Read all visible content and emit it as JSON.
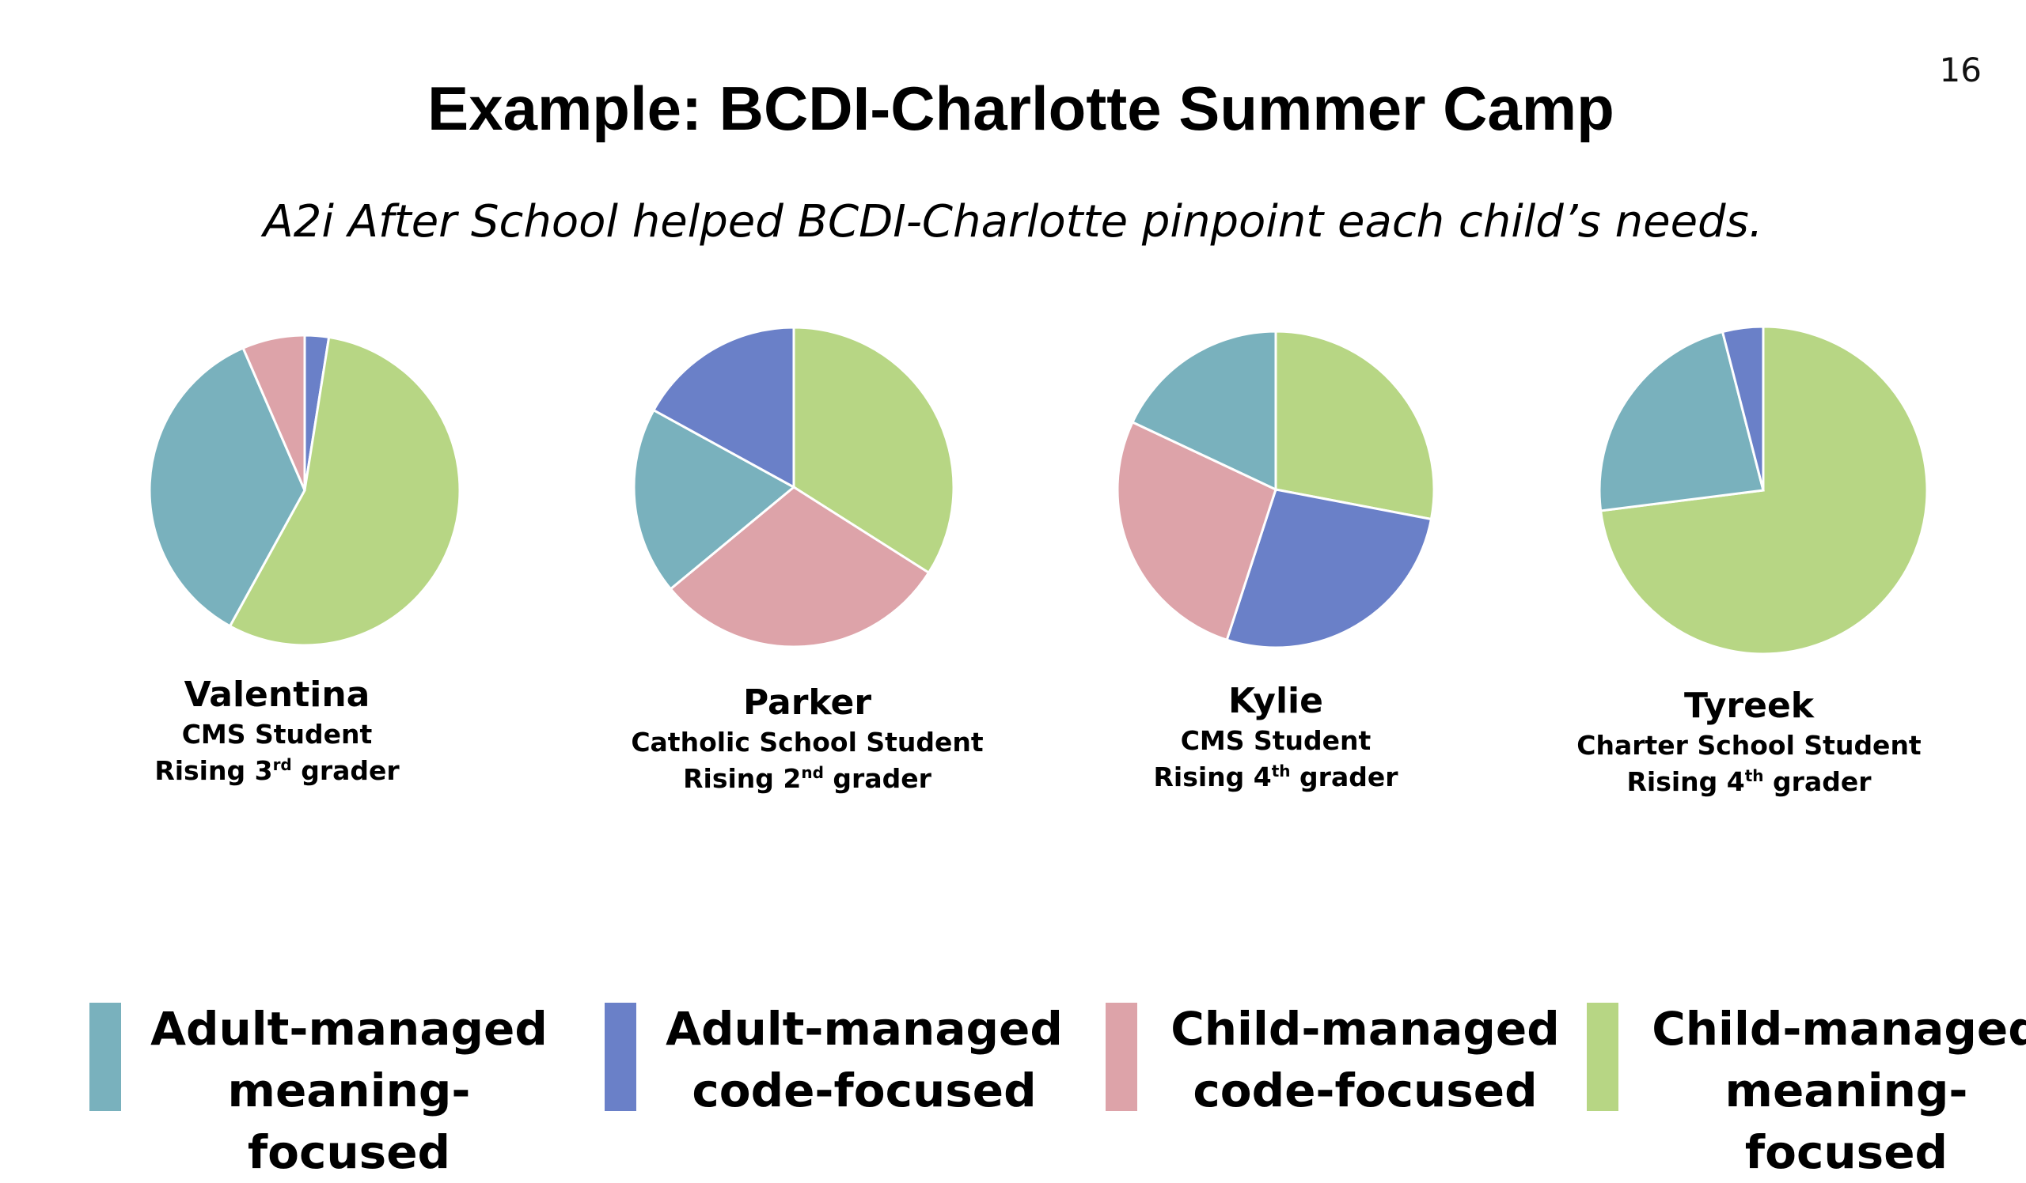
{
  "slide_number": "16",
  "chart_data": {
    "type": "pie",
    "title": "Example: BCDI-Charlotte Summer Camp",
    "subtitle": "A2i After School helped BCDI-Charlotte pinpoint each child’s needs.",
    "legend_position": "bottom",
    "categories": [
      {
        "key": "amm",
        "label_lines": [
          "Adult-managed",
          "meaning-focused"
        ],
        "color": "#79b1bd"
      },
      {
        "key": "acf",
        "label_lines": [
          "Adult-managed",
          "code-focused"
        ],
        "color": "#6a80c8"
      },
      {
        "key": "ccf",
        "label_lines": [
          "Child-managed",
          "code-focused"
        ],
        "color": "#dda3a9"
      },
      {
        "key": "cmm",
        "label_lines": [
          "Child-managed",
          "meaning-focused"
        ],
        "color": "#b7d684"
      }
    ],
    "pies": [
      {
        "name": "Valentina",
        "line1": "CMS Student",
        "line2_pre": "Rising 3",
        "line2_sup": "rd",
        "line2_post": " grader",
        "slices": [
          {
            "category": "acf",
            "value": 2.5
          },
          {
            "category": "cmm",
            "value": 55.5
          },
          {
            "category": "amm",
            "value": 35.5
          },
          {
            "category": "ccf",
            "value": 6.5
          }
        ]
      },
      {
        "name": "Parker",
        "line1": "Catholic School Student",
        "line2_pre": "Rising 2",
        "line2_sup": "nd",
        "line2_post": " grader",
        "slices": [
          {
            "category": "cmm",
            "value": 34
          },
          {
            "category": "ccf",
            "value": 30
          },
          {
            "category": "amm",
            "value": 19
          },
          {
            "category": "acf",
            "value": 17
          }
        ]
      },
      {
        "name": "Kylie",
        "line1": "CMS Student",
        "line2_pre": "Rising 4",
        "line2_sup": "th",
        "line2_post": " grader",
        "slices": [
          {
            "category": "cmm",
            "value": 28
          },
          {
            "category": "acf",
            "value": 27
          },
          {
            "category": "ccf",
            "value": 27
          },
          {
            "category": "amm",
            "value": 18
          }
        ]
      },
      {
        "name": "Tyreek",
        "line1": "Charter School Student",
        "line2_pre": "Rising 4",
        "line2_sup": "th",
        "line2_post": " grader",
        "slices": [
          {
            "category": "cmm",
            "value": 73
          },
          {
            "category": "amm",
            "value": 23
          },
          {
            "category": "acf",
            "value": 4
          }
        ]
      }
    ]
  }
}
